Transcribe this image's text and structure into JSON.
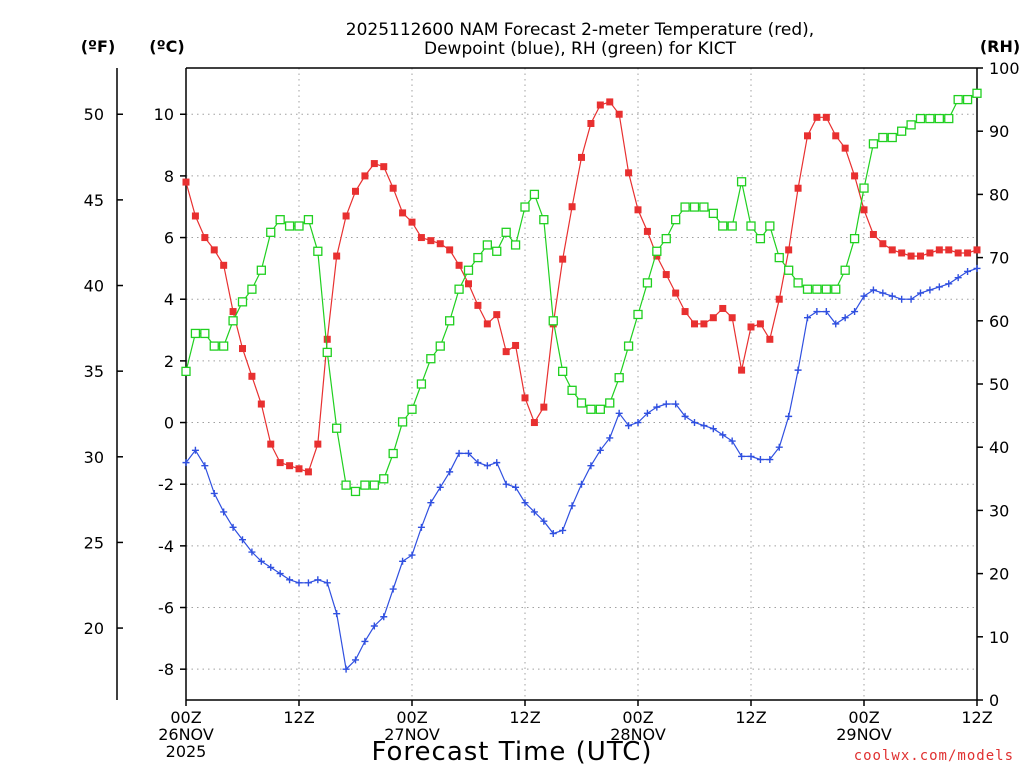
{
  "chart_data": {
    "type": "line",
    "title_lines": [
      "2025112600 NAM Forecast 2-meter Temperature (red),",
      "Dewpoint (blue), RH (green) for KICT"
    ],
    "xlabel": "Forecast Time (UTC)",
    "credit": "coolwx.com/models",
    "units": {
      "fahrenheit": "(ºF)",
      "celsius": "(ºC)",
      "rh": "(RH)"
    },
    "x_range_hours": [
      0,
      84
    ],
    "x_ticks": [
      {
        "hour": 0,
        "lines": [
          "00Z",
          "26NOV",
          "2025"
        ]
      },
      {
        "hour": 12,
        "lines": [
          "12Z"
        ]
      },
      {
        "hour": 24,
        "lines": [
          "00Z",
          "27NOV"
        ]
      },
      {
        "hour": 36,
        "lines": [
          "12Z"
        ]
      },
      {
        "hour": 48,
        "lines": [
          "00Z",
          "28NOV"
        ]
      },
      {
        "hour": 60,
        "lines": [
          "12Z"
        ]
      },
      {
        "hour": 72,
        "lines": [
          "00Z",
          "29NOV"
        ]
      },
      {
        "hour": 84,
        "lines": [
          "12Z"
        ]
      }
    ],
    "celsius_axis": {
      "range": [
        -9,
        11.5
      ],
      "ticks": [
        "-8",
        "-6",
        "-4",
        "-2",
        "0",
        "2",
        "4",
        "6",
        "8",
        "10"
      ]
    },
    "fahrenheit_axis": {
      "ticks": [
        "20",
        "25",
        "30",
        "35",
        "40",
        "45",
        "50"
      ]
    },
    "rh_axis": {
      "range": [
        0,
        100
      ],
      "ticks": [
        "0",
        "10",
        "20",
        "30",
        "40",
        "50",
        "60",
        "70",
        "80",
        "90",
        "100"
      ]
    },
    "series": [
      {
        "name": "Temperature",
        "color": "#e83030",
        "unit": "C",
        "marker": "filled-square",
        "values": [
          7.8,
          6.7,
          6.0,
          5.6,
          5.1,
          3.6,
          2.4,
          1.5,
          0.6,
          -0.7,
          -1.3,
          -1.4,
          -1.5,
          -1.6,
          -0.7,
          2.7,
          5.4,
          6.7,
          7.5,
          8.0,
          8.4,
          8.3,
          7.6,
          6.8,
          6.5,
          6.0,
          5.9,
          5.8,
          5.6,
          5.1,
          4.5,
          3.8,
          3.2,
          3.5,
          2.3,
          2.5,
          0.8,
          0.0,
          0.5,
          3.2,
          5.3,
          7.0,
          8.6,
          9.7,
          10.3,
          10.4,
          10.0,
          8.1,
          6.9,
          6.2,
          5.4,
          4.8,
          4.2,
          3.6,
          3.2,
          3.2,
          3.4,
          3.7,
          3.4,
          1.7,
          3.1,
          3.2,
          2.7,
          4.0,
          5.6,
          7.6,
          9.3,
          9.9,
          9.9,
          9.3,
          8.9,
          8.0,
          6.9,
          6.1,
          5.8,
          5.6,
          5.5,
          5.4,
          5.4,
          5.5,
          5.6,
          5.6,
          5.5,
          5.5,
          5.6
        ]
      },
      {
        "name": "Dewpoint",
        "color": "#3050e0",
        "unit": "C",
        "marker": "plus",
        "values": [
          -1.3,
          -0.9,
          -1.4,
          -2.3,
          -2.9,
          -3.4,
          -3.8,
          -4.2,
          -4.5,
          -4.7,
          -4.9,
          -5.1,
          -5.2,
          -5.2,
          -5.1,
          -5.2,
          -6.2,
          -8.0,
          -7.7,
          -7.1,
          -6.6,
          -6.3,
          -5.4,
          -4.5,
          -4.3,
          -3.4,
          -2.6,
          -2.1,
          -1.6,
          -1.0,
          -1.0,
          -1.3,
          -1.4,
          -1.3,
          -2.0,
          -2.1,
          -2.6,
          -2.9,
          -3.2,
          -3.6,
          -3.5,
          -2.7,
          -2.0,
          -1.4,
          -0.9,
          -0.5,
          0.3,
          -0.1,
          0.0,
          0.3,
          0.5,
          0.6,
          0.6,
          0.2,
          0.0,
          -0.1,
          -0.2,
          -0.4,
          -0.6,
          -1.1,
          -1.1,
          -1.2,
          -1.2,
          -0.8,
          0.2,
          1.7,
          3.4,
          3.6,
          3.6,
          3.2,
          3.4,
          3.6,
          4.1,
          4.3,
          4.2,
          4.1,
          4.0,
          4.0,
          4.2,
          4.3,
          4.4,
          4.5,
          4.7,
          4.9,
          5.0
        ]
      },
      {
        "name": "RH",
        "color": "#20d020",
        "unit": "%",
        "marker": "open-square",
        "values": [
          52,
          58,
          58,
          56,
          56,
          60,
          63,
          65,
          68,
          74,
          76,
          75,
          75,
          76,
          71,
          55,
          43,
          34,
          33,
          34,
          34,
          35,
          39,
          44,
          46,
          50,
          54,
          56,
          60,
          65,
          68,
          70,
          72,
          71,
          74,
          72,
          78,
          80,
          76,
          60,
          52,
          49,
          47,
          46,
          46,
          47,
          51,
          56,
          61,
          66,
          71,
          73,
          76,
          78,
          78,
          78,
          77,
          75,
          75,
          82,
          75,
          73,
          75,
          70,
          68,
          66,
          65,
          65,
          65,
          65,
          68,
          73,
          81,
          88,
          89,
          89,
          90,
          91,
          92,
          92,
          92,
          92,
          95,
          95,
          96
        ]
      }
    ]
  }
}
